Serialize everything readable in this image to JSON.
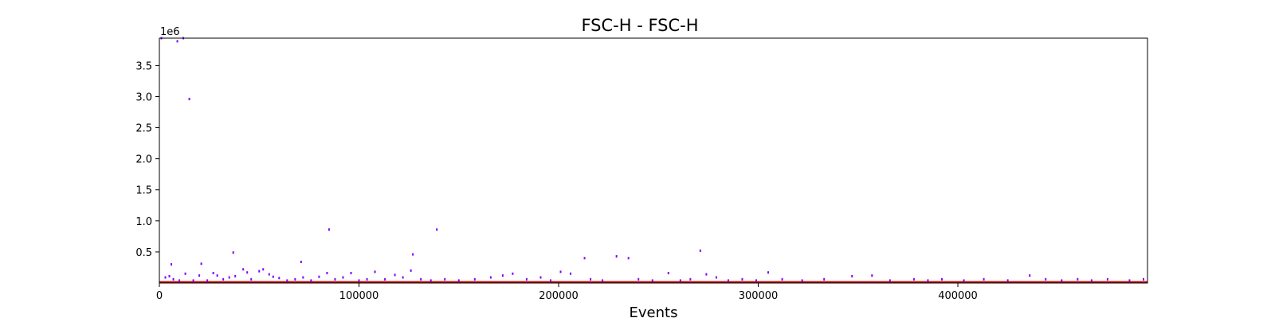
{
  "chart_data": {
    "type": "scatter",
    "title": "FSC-H - FSC-H",
    "xlabel": "Events",
    "ylabel": "",
    "y_offset_label": "1e6",
    "xlim": [
      0,
      495000
    ],
    "ylim": [
      0,
      3940000
    ],
    "x_ticks": [
      0,
      100000,
      200000,
      300000,
      400000
    ],
    "x_tick_labels": [
      "0",
      "100000",
      "200000",
      "300000",
      "400000"
    ],
    "y_ticks": [
      500000,
      1000000,
      1500000,
      2000000,
      2500000,
      3000000,
      3500000
    ],
    "y_tick_labels": [
      "0.5",
      "1.0",
      "1.5",
      "2.0",
      "2.5",
      "3.0",
      "3.5"
    ],
    "grid": false,
    "colors": {
      "points": "#8000ff",
      "baseline": "#cc0000"
    },
    "points": [
      [
        1000,
        3940000
      ],
      [
        9000,
        3890000
      ],
      [
        12000,
        3940000
      ],
      [
        15000,
        2960000
      ],
      [
        85000,
        860000
      ],
      [
        139000,
        860000
      ],
      [
        37000,
        490000
      ],
      [
        127000,
        460000
      ],
      [
        213000,
        400000
      ],
      [
        229000,
        430000
      ],
      [
        235000,
        400000
      ],
      [
        271000,
        520000
      ],
      [
        71000,
        340000
      ],
      [
        21000,
        310000
      ],
      [
        6000,
        300000
      ],
      [
        305000,
        170000
      ],
      [
        3000,
        90000
      ],
      [
        5000,
        110000
      ],
      [
        7000,
        60000
      ],
      [
        10000,
        40000
      ],
      [
        13000,
        150000
      ],
      [
        17000,
        40000
      ],
      [
        20000,
        120000
      ],
      [
        24000,
        40000
      ],
      [
        27000,
        160000
      ],
      [
        29000,
        120000
      ],
      [
        32000,
        60000
      ],
      [
        35000,
        90000
      ],
      [
        38000,
        110000
      ],
      [
        42000,
        220000
      ],
      [
        44000,
        170000
      ],
      [
        46000,
        60000
      ],
      [
        50000,
        190000
      ],
      [
        52000,
        220000
      ],
      [
        55000,
        140000
      ],
      [
        57000,
        100000
      ],
      [
        60000,
        80000
      ],
      [
        64000,
        40000
      ],
      [
        68000,
        60000
      ],
      [
        72000,
        90000
      ],
      [
        76000,
        40000
      ],
      [
        80000,
        100000
      ],
      [
        84000,
        160000
      ],
      [
        88000,
        60000
      ],
      [
        92000,
        90000
      ],
      [
        96000,
        160000
      ],
      [
        100000,
        40000
      ],
      [
        104000,
        60000
      ],
      [
        108000,
        180000
      ],
      [
        113000,
        60000
      ],
      [
        118000,
        130000
      ],
      [
        122000,
        90000
      ],
      [
        126000,
        200000
      ],
      [
        131000,
        60000
      ],
      [
        136000,
        40000
      ],
      [
        143000,
        60000
      ],
      [
        150000,
        40000
      ],
      [
        158000,
        60000
      ],
      [
        166000,
        90000
      ],
      [
        172000,
        120000
      ],
      [
        177000,
        150000
      ],
      [
        184000,
        60000
      ],
      [
        191000,
        90000
      ],
      [
        196000,
        40000
      ],
      [
        201000,
        180000
      ],
      [
        206000,
        150000
      ],
      [
        216000,
        60000
      ],
      [
        222000,
        40000
      ],
      [
        240000,
        60000
      ],
      [
        247000,
        40000
      ],
      [
        255000,
        160000
      ],
      [
        261000,
        40000
      ],
      [
        266000,
        60000
      ],
      [
        274000,
        140000
      ],
      [
        279000,
        90000
      ],
      [
        285000,
        40000
      ],
      [
        292000,
        60000
      ],
      [
        299000,
        40000
      ],
      [
        312000,
        60000
      ],
      [
        322000,
        40000
      ],
      [
        333000,
        60000
      ],
      [
        347000,
        110000
      ],
      [
        357000,
        120000
      ],
      [
        366000,
        40000
      ],
      [
        378000,
        60000
      ],
      [
        385000,
        40000
      ],
      [
        392000,
        60000
      ],
      [
        403000,
        40000
      ],
      [
        413000,
        60000
      ],
      [
        425000,
        40000
      ],
      [
        436000,
        120000
      ],
      [
        444000,
        60000
      ],
      [
        452000,
        40000
      ],
      [
        460000,
        60000
      ],
      [
        467000,
        40000
      ],
      [
        475000,
        60000
      ],
      [
        486000,
        40000
      ],
      [
        493000,
        60000
      ]
    ],
    "dense_band_max_y": 30000
  }
}
